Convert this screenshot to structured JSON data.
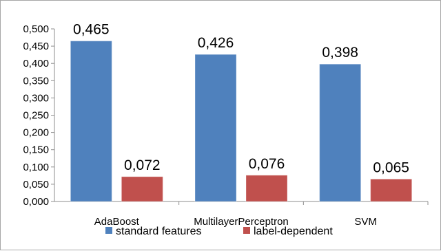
{
  "chart_data": {
    "type": "bar",
    "categories": [
      "AdaBoost",
      "MultilayerPerceptron",
      "SVM"
    ],
    "series": [
      {
        "name": "standard features",
        "values": [
          0.465,
          0.426,
          0.398
        ],
        "labels": [
          "0,465",
          "0,426",
          "0,398"
        ],
        "color": "#4f81bd"
      },
      {
        "name": "label-dependent",
        "values": [
          0.072,
          0.076,
          0.065
        ],
        "labels": [
          "0,072",
          "0,076",
          "0,065"
        ],
        "color": "#c0504d"
      }
    ],
    "ylim": [
      0,
      0.5
    ],
    "yticks": [
      "0,000",
      "0,050",
      "0,100",
      "0,150",
      "0,200",
      "0,250",
      "0,300",
      "0,350",
      "0,400",
      "0,450",
      "0,500"
    ],
    "grid": false,
    "legend": "bottom"
  }
}
